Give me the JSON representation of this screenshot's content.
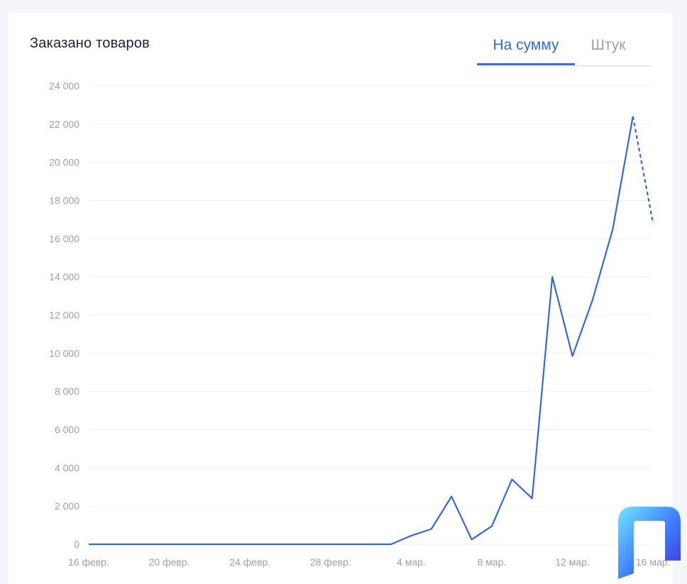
{
  "card": {
    "title": "Заказано товаров"
  },
  "tabs": [
    {
      "label": "На сумму",
      "active": true
    },
    {
      "label": "Штук",
      "active": false
    }
  ],
  "colors": {
    "accent": "#3a6fd8",
    "line": "#3568d4",
    "tick_text": "#9aa0ae",
    "grid": "#eef0f4"
  },
  "chart_data": {
    "type": "line",
    "title": "Заказано товаров",
    "xlabel": "",
    "ylabel": "",
    "ylim": [
      0,
      24000
    ],
    "yticks": [
      0,
      2000,
      4000,
      6000,
      8000,
      10000,
      12000,
      14000,
      16000,
      18000,
      20000,
      22000,
      24000
    ],
    "ytick_labels": [
      "0",
      "2 000",
      "4 000",
      "6 000",
      "8 000",
      "10 000",
      "12 000",
      "14 000",
      "16 000",
      "18 000",
      "20 000",
      "22 000",
      "24 000"
    ],
    "x_tick_labels": [
      "16 февр.",
      "20 февр.",
      "24 февр.",
      "28 февр.",
      "4 мар.",
      "8 мар.",
      "12 мар.",
      "16 мар."
    ],
    "grid": true,
    "x": [
      "16 февр.",
      "17 февр.",
      "18 февр.",
      "19 февр.",
      "20 февр.",
      "21 февр.",
      "22 февр.",
      "23 февр.",
      "24 февр.",
      "25 февр.",
      "26 февр.",
      "27 февр.",
      "28 февр.",
      "1 мар.",
      "2 мар.",
      "3 мар.",
      "4 мар.",
      "5 мар.",
      "6 мар.",
      "7 мар.",
      "8 мар.",
      "9 мар.",
      "10 мар.",
      "11 мар.",
      "12 мар.",
      "13 мар.",
      "14 мар.",
      "15 мар.",
      "16 мар."
    ],
    "values": [
      0,
      0,
      0,
      0,
      0,
      0,
      0,
      0,
      0,
      0,
      0,
      0,
      0,
      0,
      0,
      0,
      450,
      800,
      2500,
      250,
      950,
      3400,
      2400,
      14000,
      9850,
      12800,
      16500,
      22400,
      16800
    ],
    "dashed_last_segment": true
  }
}
